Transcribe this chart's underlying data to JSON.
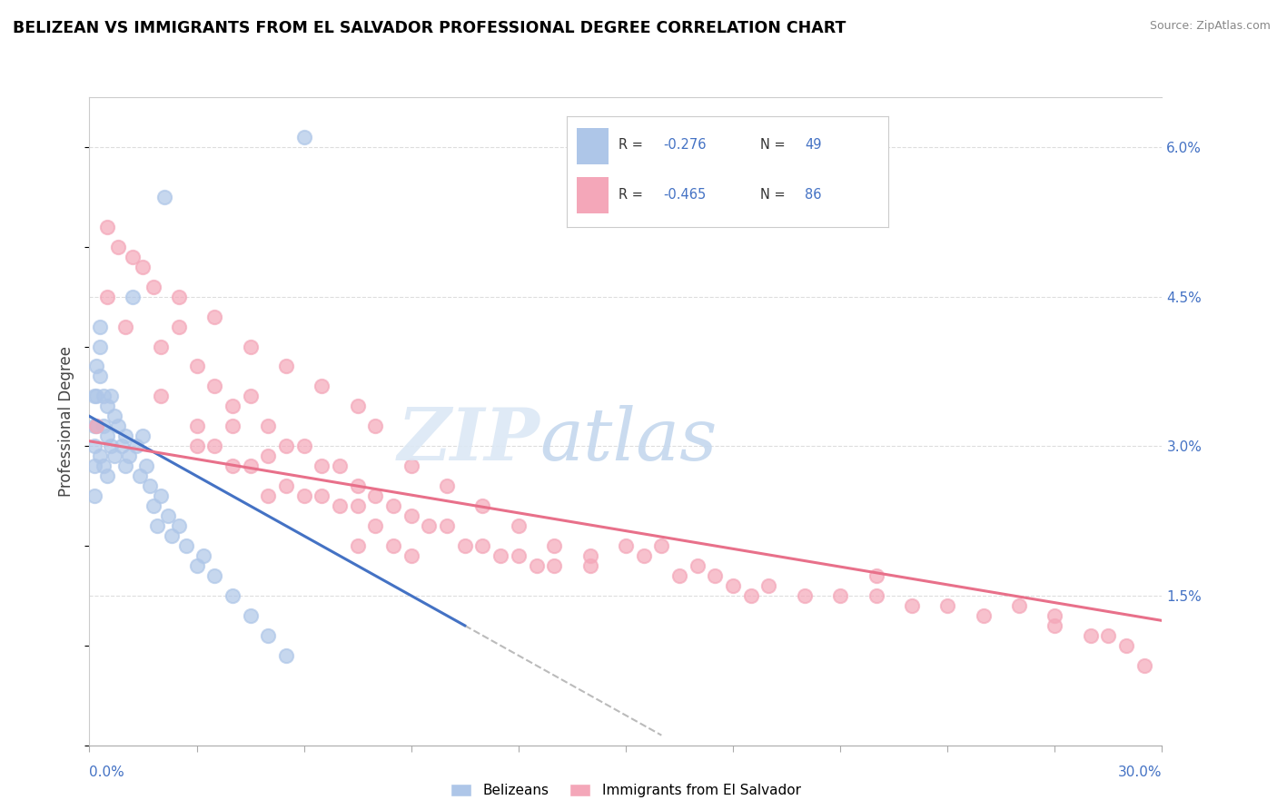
{
  "title": "BELIZEAN VS IMMIGRANTS FROM EL SALVADOR PROFESSIONAL DEGREE CORRELATION CHART",
  "source": "Source: ZipAtlas.com",
  "ylabel": "Professional Degree",
  "right_yticks": [
    0.0,
    1.5,
    3.0,
    4.5,
    6.0
  ],
  "right_yticklabels": [
    "",
    "1.5%",
    "3.0%",
    "4.5%",
    "6.0%"
  ],
  "xmin": 0.0,
  "xmax": 30.0,
  "ymin": 0.0,
  "ymax": 6.5,
  "blue_color": "#aec6e8",
  "pink_color": "#f4a7b9",
  "blue_line_color": "#4472c4",
  "pink_line_color": "#e8708a",
  "legend_label_blue": "Belizeans",
  "legend_label_pink": "Immigrants from El Salvador",
  "blue_scatter_x": [
    0.15,
    0.15,
    0.15,
    0.15,
    0.15,
    0.2,
    0.2,
    0.2,
    0.3,
    0.3,
    0.3,
    0.3,
    0.4,
    0.4,
    0.4,
    0.5,
    0.5,
    0.5,
    0.6,
    0.6,
    0.7,
    0.7,
    0.8,
    0.9,
    1.0,
    1.0,
    1.1,
    1.2,
    1.3,
    1.4,
    1.5,
    1.6,
    1.7,
    1.8,
    1.9,
    2.0,
    2.1,
    2.2,
    2.3,
    2.5,
    2.7,
    3.0,
    3.2,
    3.5,
    4.0,
    4.5,
    5.0,
    5.5,
    6.0
  ],
  "blue_scatter_y": [
    3.5,
    3.2,
    3.0,
    2.8,
    2.5,
    3.8,
    3.5,
    3.2,
    4.2,
    4.0,
    3.7,
    2.9,
    3.5,
    3.2,
    2.8,
    3.4,
    3.1,
    2.7,
    3.5,
    3.0,
    3.3,
    2.9,
    3.2,
    3.0,
    3.1,
    2.8,
    2.9,
    4.5,
    3.0,
    2.7,
    3.1,
    2.8,
    2.6,
    2.4,
    2.2,
    2.5,
    5.5,
    2.3,
    2.1,
    2.2,
    2.0,
    1.8,
    1.9,
    1.7,
    1.5,
    1.3,
    1.1,
    0.9,
    6.1
  ],
  "pink_scatter_x": [
    0.2,
    0.5,
    1.0,
    1.5,
    2.0,
    2.0,
    2.5,
    3.0,
    3.0,
    3.0,
    3.5,
    3.5,
    4.0,
    4.0,
    4.0,
    4.5,
    4.5,
    5.0,
    5.0,
    5.0,
    5.5,
    5.5,
    6.0,
    6.0,
    6.5,
    6.5,
    7.0,
    7.0,
    7.5,
    7.5,
    7.5,
    8.0,
    8.0,
    8.5,
    8.5,
    9.0,
    9.0,
    9.5,
    10.0,
    10.5,
    11.0,
    11.5,
    12.0,
    12.5,
    13.0,
    14.0,
    15.0,
    16.0,
    17.0,
    18.0,
    19.0,
    20.0,
    21.0,
    22.0,
    23.0,
    24.0,
    25.0,
    26.0,
    27.0,
    28.0,
    29.0,
    29.5,
    0.5,
    0.8,
    1.2,
    1.8,
    2.5,
    3.5,
    4.5,
    5.5,
    6.5,
    7.5,
    8.0,
    9.0,
    10.0,
    11.0,
    12.0,
    13.0,
    14.0,
    15.5,
    16.5,
    17.5,
    18.5,
    22.0,
    27.0,
    28.5
  ],
  "pink_scatter_y": [
    3.2,
    4.5,
    4.2,
    4.8,
    4.0,
    3.5,
    4.2,
    3.8,
    3.2,
    3.0,
    3.6,
    3.0,
    3.4,
    3.2,
    2.8,
    3.5,
    2.8,
    3.2,
    2.9,
    2.5,
    3.0,
    2.6,
    3.0,
    2.5,
    2.8,
    2.5,
    2.8,
    2.4,
    2.6,
    2.4,
    2.0,
    2.5,
    2.2,
    2.4,
    2.0,
    2.3,
    1.9,
    2.2,
    2.2,
    2.0,
    2.0,
    1.9,
    1.9,
    1.8,
    1.8,
    1.8,
    2.0,
    2.0,
    1.8,
    1.6,
    1.6,
    1.5,
    1.5,
    1.5,
    1.4,
    1.4,
    1.3,
    1.4,
    1.2,
    1.1,
    1.0,
    0.8,
    5.2,
    5.0,
    4.9,
    4.6,
    4.5,
    4.3,
    4.0,
    3.8,
    3.6,
    3.4,
    3.2,
    2.8,
    2.6,
    2.4,
    2.2,
    2.0,
    1.9,
    1.9,
    1.7,
    1.7,
    1.5,
    1.7,
    1.3,
    1.1
  ],
  "blue_line_x0": 0.0,
  "blue_line_x1": 10.5,
  "blue_line_y0": 3.3,
  "blue_line_y1": 1.2,
  "blue_dash_x0": 10.5,
  "blue_dash_x1": 16.0,
  "pink_line_x0": 0.0,
  "pink_line_x1": 30.0,
  "pink_line_y0": 3.05,
  "pink_line_y1": 1.25
}
